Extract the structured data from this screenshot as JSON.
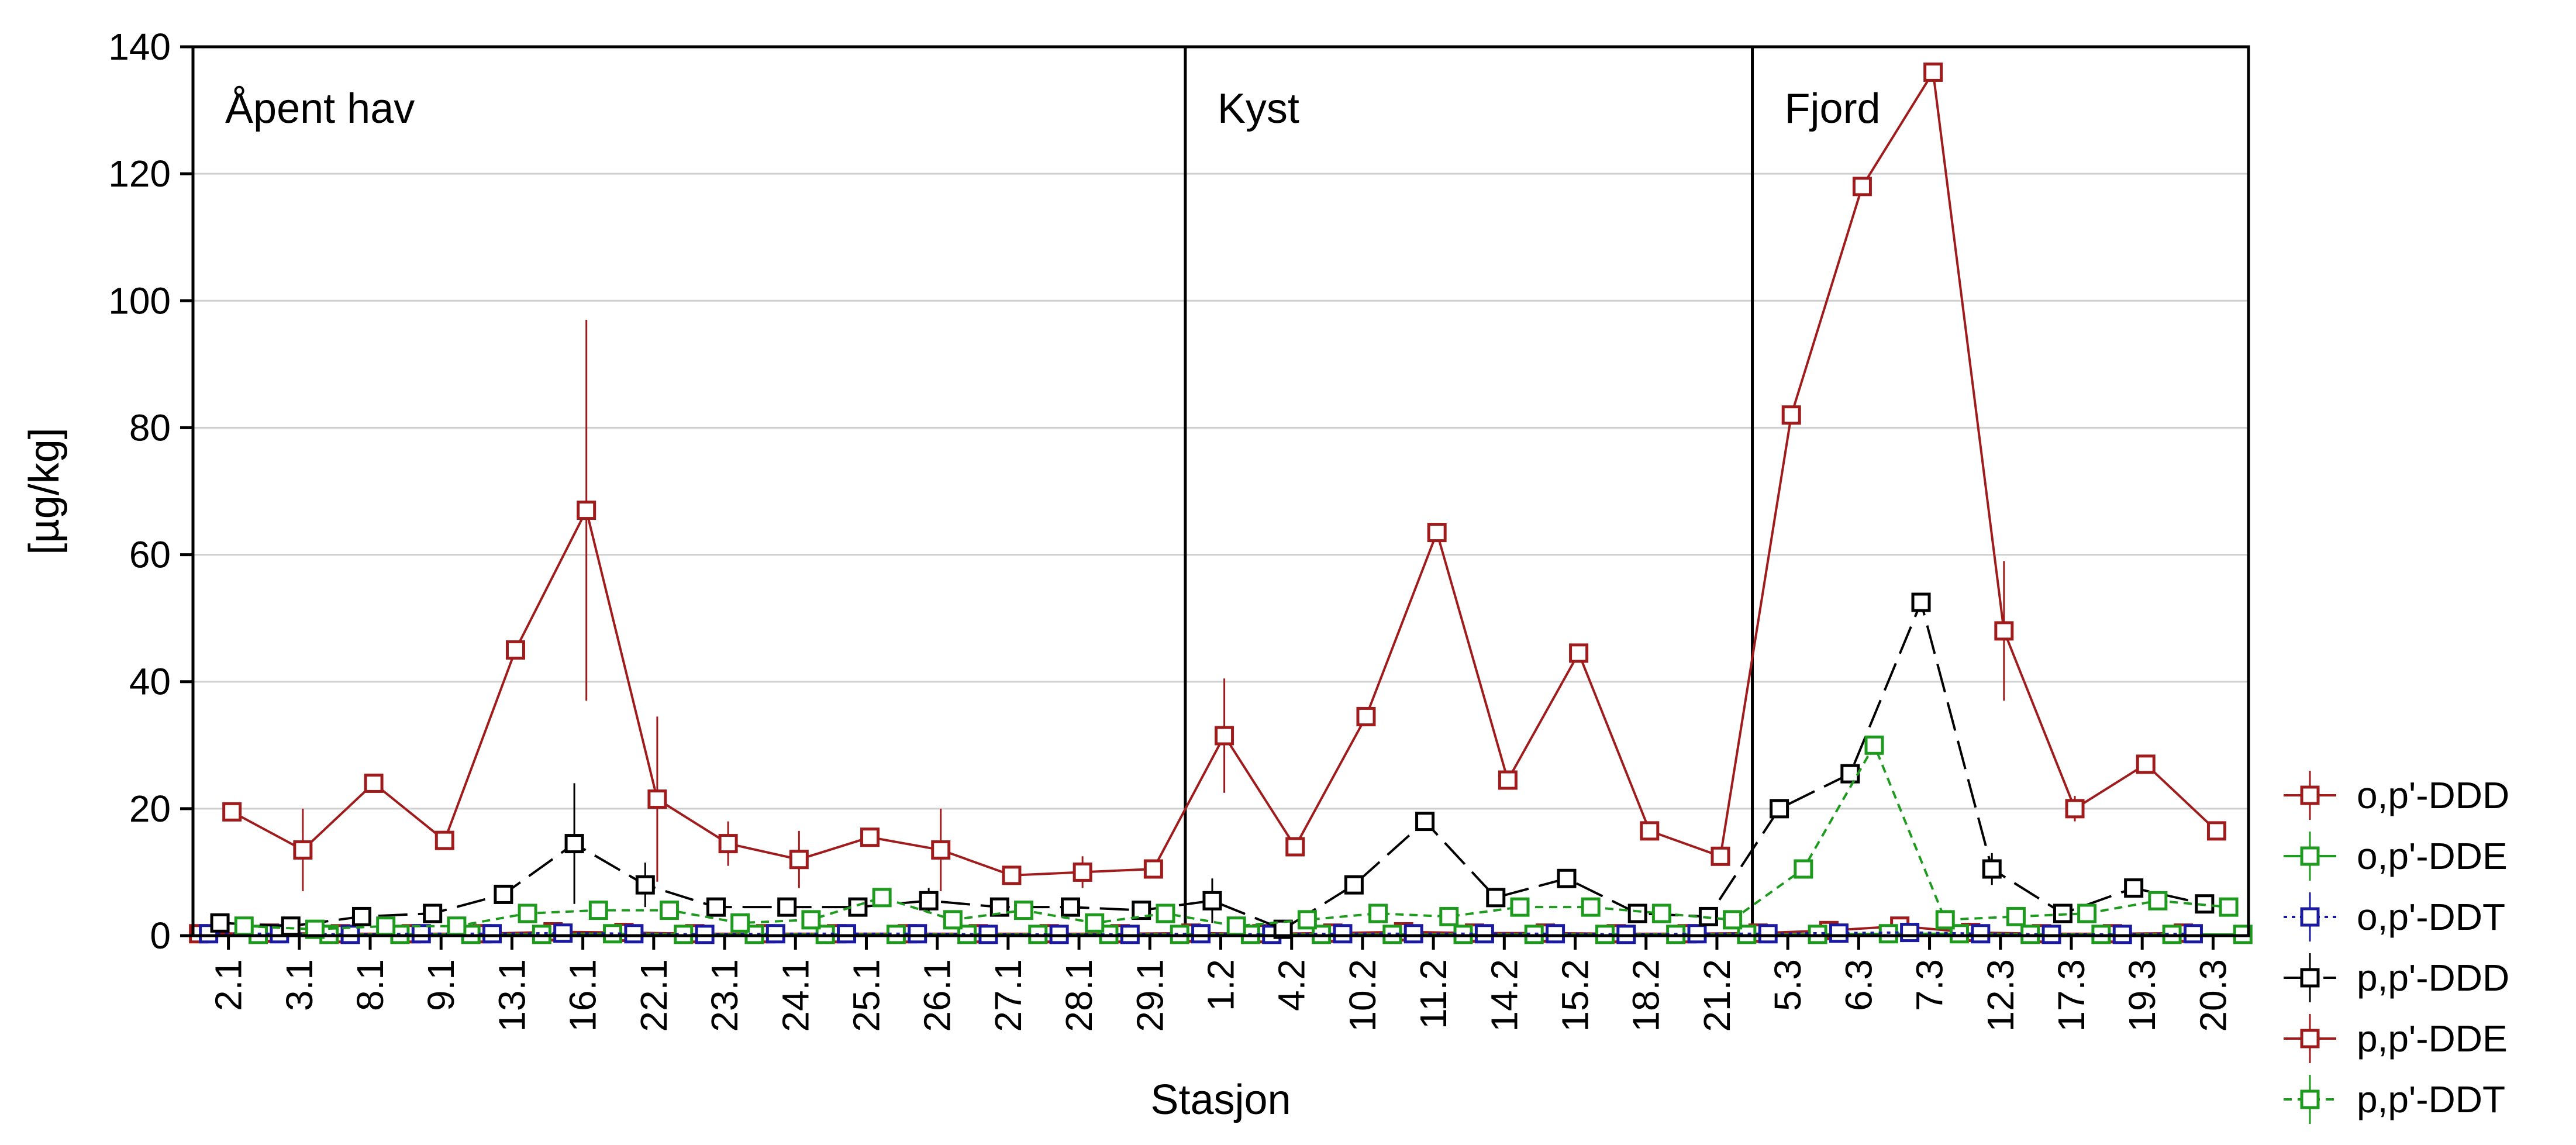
{
  "chart_data": {
    "type": "line",
    "xlabel": "Stasjon",
    "ylabel": "[µg/kg]",
    "ylim": [
      0,
      140
    ],
    "yticks": [
      0,
      20,
      40,
      60,
      80,
      100,
      120,
      140
    ],
    "grid": "horizontal",
    "legend_position": "right-bottom",
    "categories": [
      "2.1",
      "3.1",
      "8.1",
      "9.1",
      "13.1",
      "16.1",
      "22.1",
      "23.1",
      "24.1",
      "25.1",
      "26.1",
      "27.1",
      "28.1",
      "29.1",
      "1.2",
      "4.2",
      "10.2",
      "11.2",
      "14.2",
      "15.2",
      "18.2",
      "21.2",
      "5.3",
      "6.3",
      "7.3",
      "12.3",
      "17.3",
      "19.3",
      "20.3"
    ],
    "regions": [
      {
        "label": "Åpent hav",
        "from": "2.1",
        "to": "29.1"
      },
      {
        "label": "Kyst",
        "from": "1.2",
        "to": "21.2"
      },
      {
        "label": "Fjord",
        "from": "5.3",
        "to": "20.3"
      }
    ],
    "series": [
      {
        "name": "o,p'-DDD",
        "color": "#a01c1c",
        "dash": "solid",
        "values": [
          0.3,
          0.4,
          0.3,
          0.3,
          0.3,
          0.6,
          0.5,
          0.3,
          0.3,
          0.3,
          0.3,
          0.3,
          0.3,
          0.3,
          0.4,
          0.3,
          0.4,
          0.6,
          0.4,
          0.4,
          0.3,
          0.3,
          0.4,
          0.8,
          1.5,
          0.5,
          0.3,
          0.3,
          0.4
        ]
      },
      {
        "name": "o,p'-DDE",
        "color": "#1e9a1e",
        "dash": "solid",
        "values": [
          0.2,
          0.2,
          0.2,
          0.2,
          0.2,
          0.3,
          0.2,
          0.2,
          0.2,
          0.2,
          0.2,
          0.2,
          0.2,
          0.2,
          0.2,
          0.2,
          0.2,
          0.2,
          0.2,
          0.2,
          0.2,
          0.2,
          0.2,
          0.3,
          0.3,
          0.2,
          0.2,
          0.2,
          0.2
        ]
      },
      {
        "name": "o,p'-DDT",
        "color": "#1a1aa0",
        "dash": "dotted",
        "values": [
          0.3,
          0.3,
          0.2,
          0.3,
          0.3,
          0.4,
          0.3,
          0.2,
          0.3,
          0.3,
          0.3,
          0.2,
          0.2,
          0.2,
          0.3,
          0.2,
          0.3,
          0.3,
          0.3,
          0.3,
          0.2,
          0.3,
          0.3,
          0.4,
          0.5,
          0.3,
          0.2,
          0.2,
          0.3
        ]
      },
      {
        "name": "p,p'-DDD",
        "color": "#000000",
        "dash": "longdash",
        "values": [
          2.0,
          1.5,
          3.0,
          3.5,
          6.5,
          14.5,
          8.0,
          4.5,
          4.5,
          4.5,
          5.5,
          4.5,
          4.5,
          4.0,
          5.5,
          1.0,
          8.0,
          18.0,
          6.0,
          9.0,
          3.5,
          3.0,
          20.0,
          25.5,
          52.5,
          10.5,
          3.5,
          7.5,
          5.0
        ],
        "error": [
          0,
          0,
          0,
          0,
          0,
          9.5,
          3.5,
          0,
          0,
          0,
          2.0,
          0,
          0,
          0,
          3.5,
          0,
          0,
          0,
          0,
          0,
          0,
          0,
          0,
          0,
          0,
          2.5,
          0,
          0,
          0
        ]
      },
      {
        "name": "p,p'-DDE",
        "color": "#a01c1c",
        "dash": "solid",
        "values": [
          19.5,
          13.5,
          24.0,
          15.0,
          45.0,
          67.0,
          21.5,
          14.5,
          12.0,
          15.5,
          13.5,
          9.5,
          10.0,
          10.5,
          31.5,
          14.0,
          34.5,
          63.5,
          24.5,
          44.5,
          16.5,
          12.5,
          82.0,
          118.0,
          136.0,
          48.0,
          20.0,
          27.0,
          16.5
        ],
        "error": [
          0,
          6.5,
          0,
          0,
          0,
          30.0,
          13.0,
          3.5,
          4.5,
          0,
          6.5,
          0,
          2.5,
          0,
          9.0,
          0,
          0,
          0,
          0,
          0,
          0,
          0,
          0,
          0,
          0,
          11.0,
          2.0,
          0,
          0
        ]
      },
      {
        "name": "p,p'-DDT",
        "color": "#1e9a1e",
        "dash": "dashed",
        "values": [
          1.5,
          1.0,
          1.5,
          1.5,
          3.5,
          4.0,
          4.0,
          2.0,
          2.5,
          6.0,
          2.5,
          4.0,
          2.0,
          3.5,
          1.5,
          2.5,
          3.5,
          3.0,
          4.5,
          4.5,
          3.5,
          2.5,
          10.5,
          30.0,
          2.5,
          3.0,
          3.5,
          5.5,
          4.5
        ],
        "error": [
          0,
          0,
          0,
          0,
          0,
          0,
          1.5,
          0,
          0,
          0,
          0,
          0,
          0,
          0,
          0,
          0,
          0,
          0,
          0,
          0,
          0,
          0,
          0,
          0,
          0,
          0,
          0,
          0,
          0
        ]
      }
    ]
  }
}
